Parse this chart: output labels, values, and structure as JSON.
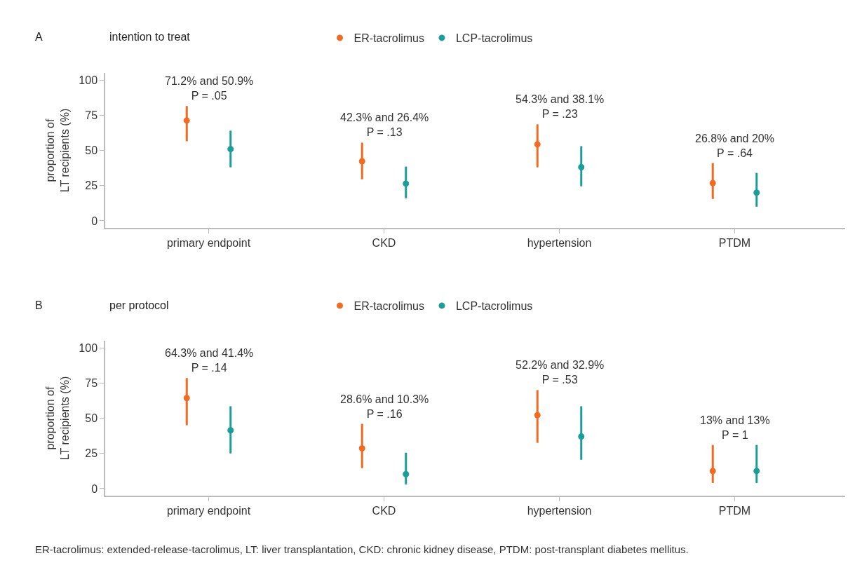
{
  "chart_data": [
    {
      "type": "scatter",
      "title": "A",
      "subtitle": "intention to treat",
      "ylabel": "proportion of\nLT recipients (%)",
      "categories": [
        "primary endpoint",
        "CKD",
        "hypertension",
        "PTDM"
      ],
      "ylim": [
        -5,
        105
      ],
      "yticks": [
        0,
        25,
        50,
        75,
        100
      ],
      "legend": "top",
      "marker": "circle",
      "series": [
        {
          "name": "ER-tacrolimus",
          "color": "#f26b21",
          "values": [
            71.2,
            42.3,
            54.3,
            26.8
          ],
          "errors": [
            [
              56.5,
              81.5
            ],
            [
              29.5,
              55.5
            ],
            [
              38,
              68.5
            ],
            [
              15.5,
              41
            ]
          ]
        },
        {
          "name": "LCP-tacrolimus",
          "color": "#1a9e99",
          "values": [
            50.9,
            26.4,
            38.1,
            20
          ],
          "errors": [
            [
              38,
              64
            ],
            [
              16,
              38.5
            ],
            [
              24.5,
              53
            ],
            [
              10,
              34
            ]
          ]
        }
      ],
      "annotations": [
        "71.2% and 50.9%\nP = .05",
        "42.3% and 26.4%\nP = .13",
        "54.3% and 38.1%\nP = .23",
        "26.8% and 20%\nP = .64"
      ]
    },
    {
      "type": "scatter",
      "title": "B",
      "subtitle": "per protocol",
      "ylabel": "proportion of\nLT recipients (%)",
      "categories": [
        "primary endpoint",
        "CKD",
        "hypertension",
        "PTDM"
      ],
      "ylim": [
        -5,
        105
      ],
      "yticks": [
        0,
        25,
        50,
        75,
        100
      ],
      "legend": "top",
      "marker": "circle",
      "series": [
        {
          "name": "ER-tacrolimus",
          "color": "#f26b21",
          "values": [
            64.3,
            28.6,
            52.2,
            12.5
          ],
          "errors": [
            [
              45,
              78.5
            ],
            [
              14.5,
              46
            ],
            [
              32.5,
              70
            ],
            [
              4,
              31
            ]
          ]
        },
        {
          "name": "LCP-tacrolimus",
          "color": "#1a9e99",
          "values": [
            41.4,
            10.3,
            37,
            12.5
          ],
          "errors": [
            [
              25,
              58.5
            ],
            [
              3,
              25.5
            ],
            [
              20.5,
              58.5
            ],
            [
              4,
              31
            ]
          ]
        }
      ],
      "annotations": [
        "64.3% and 41.4%\nP = .14",
        "28.6% and 10.3%\nP = .16",
        "52.2% and 32.9%\nP = .53",
        "13% and 13%\nP = 1",
        "ER-tacrolimus: extended-release-tacrolimus, LT: liver transplantation, CKD: chronic kidney disease, PTDM: post-transplant diabetes mellitus."
      ]
    }
  ]
}
